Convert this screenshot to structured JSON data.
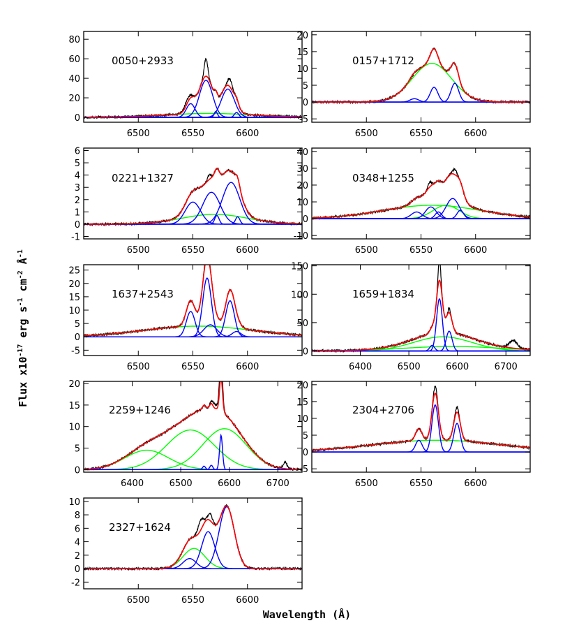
{
  "figure": {
    "xlabel": "Wavelength (Å)",
    "ylabel_parts": {
      "prefix": "Flux x10",
      "exp1": "-17",
      "mid1": " erg s",
      "exp2": "-1",
      "mid2": " cm",
      "exp3": "-2",
      "mid3": " Å",
      "exp4": "-1"
    },
    "colors": {
      "data": "#000000",
      "total_fit": "#ff0000",
      "narrow_components": "#0000ff",
      "broad_components": "#00ff00"
    }
  },
  "chart_data": [
    {
      "type": "line",
      "title": "0050+2933",
      "xlim": [
        6450,
        6650
      ],
      "ylim": [
        -5,
        88
      ],
      "xticks": [
        6500,
        6550,
        6600
      ],
      "yticks": [
        0,
        20,
        40,
        60,
        80
      ],
      "narrow": [
        [
          6548,
          14,
          4
        ],
        [
          6562,
          38,
          6
        ],
        [
          6571,
          6,
          1.5
        ],
        [
          6582,
          29,
          6
        ],
        [
          6590,
          5,
          2
        ]
      ],
      "broad": [
        [
          6565,
          4,
          40
        ]
      ],
      "extra_peaks": [
        [
          6562,
          18,
          1.6
        ],
        [
          6584,
          8,
          2
        ],
        [
          6545,
          4,
          3
        ]
      ]
    },
    {
      "type": "line",
      "title": "0157+1712",
      "xlim": [
        6450,
        6650
      ],
      "ylim": [
        -6,
        21
      ],
      "xticks": [
        6500,
        6550,
        6600
      ],
      "yticks": [
        -5,
        0,
        5,
        10,
        15,
        20
      ],
      "narrow": [
        [
          6544,
          1,
          4
        ],
        [
          6562,
          4.4,
          3.5
        ],
        [
          6581,
          5.6,
          3.5
        ]
      ],
      "broad": [
        [
          6560,
          11.5,
          18
        ]
      ],
      "extra_peaks": []
    },
    {
      "type": "line",
      "title": "0221+1327",
      "xlim": [
        6450,
        6650
      ],
      "ylim": [
        -1.2,
        6.2
      ],
      "xticks": [
        6500,
        6550,
        6600
      ],
      "yticks": [
        -1,
        0,
        1,
        2,
        3,
        4,
        5,
        6
      ],
      "narrow": [
        [
          6550,
          1.8,
          7
        ],
        [
          6567,
          2.6,
          8
        ],
        [
          6572,
          0.7,
          2
        ],
        [
          6585,
          3.4,
          8
        ],
        [
          6591,
          0.6,
          2
        ]
      ],
      "broad": [
        [
          6570,
          0.8,
          30
        ]
      ],
      "extra_peaks": [
        [
          6565,
          0.4,
          1.5
        ]
      ]
    },
    {
      "type": "line",
      "title": "0348+1255",
      "xlim": [
        6450,
        6650
      ],
      "ylim": [
        -12,
        42
      ],
      "xticks": [
        6500,
        6550,
        6600
      ],
      "yticks": [
        -10,
        0,
        10,
        20,
        30,
        40
      ],
      "narrow": [
        [
          6546,
          4,
          5
        ],
        [
          6559,
          7,
          5
        ],
        [
          6566,
          4,
          3
        ],
        [
          6579,
          12,
          6
        ],
        [
          6586,
          5,
          3
        ]
      ],
      "broad": [
        [
          6560,
          8,
          45
        ],
        [
          6573,
          8,
          12
        ]
      ],
      "extra_peaks": [
        [
          6558,
          3,
          1.5
        ],
        [
          6581,
          3,
          2
        ]
      ]
    },
    {
      "type": "line",
      "title": "1637+2543",
      "xlim": [
        6450,
        6650
      ],
      "ylim": [
        -7,
        27
      ],
      "xticks": [
        6500,
        6550,
        6600
      ],
      "yticks": [
        -5,
        0,
        5,
        10,
        15,
        20,
        25
      ],
      "narrow": [
        [
          6548,
          9.5,
          4
        ],
        [
          6563,
          22,
          4
        ],
        [
          6566,
          4.5,
          6
        ],
        [
          6584,
          13.5,
          4
        ],
        [
          6590,
          2,
          4
        ]
      ],
      "broad": [
        [
          6555,
          4,
          50
        ]
      ],
      "extra_peaks": [
        [
          6563,
          4,
          1.5
        ]
      ]
    },
    {
      "type": "line",
      "title": "1659+1834",
      "xlim": [
        6300,
        6750
      ],
      "ylim": [
        -8,
        152
      ],
      "xticks": [
        6400,
        6500,
        6600,
        6700
      ],
      "yticks": [
        0,
        50,
        100,
        150
      ],
      "narrow": [
        [
          6563,
          92,
          6
        ],
        [
          6583,
          35,
          6
        ],
        [
          6548,
          10,
          5
        ]
      ],
      "broad": [
        [
          6570,
          25,
          60
        ],
        [
          6590,
          8,
          100
        ]
      ],
      "extra_peaks": [
        [
          6563,
          38,
          2.5
        ],
        [
          6583,
          8,
          2
        ],
        [
          6715,
          14,
          8
        ]
      ]
    },
    {
      "type": "line",
      "title": "2259+1246",
      "xlim": [
        6300,
        6750
      ],
      "ylim": [
        -0.6,
        20.5
      ],
      "xticks": [
        6400,
        6500,
        6600,
        6700
      ],
      "yticks": [
        0,
        5,
        10,
        15,
        20
      ],
      "narrow": [
        [
          6548,
          0.8,
          3
        ],
        [
          6563,
          1,
          3
        ],
        [
          6583,
          8,
          3
        ]
      ],
      "broad": [
        [
          6430,
          4.5,
          45
        ],
        [
          6520,
          9.2,
          50
        ],
        [
          6590,
          9.5,
          45
        ]
      ],
      "extra_peaks": [
        [
          6583,
          5,
          3
        ],
        [
          6570,
          1,
          6
        ],
        [
          6715,
          1.5,
          4
        ]
      ]
    },
    {
      "type": "line",
      "title": "2304+2706",
      "xlim": [
        6450,
        6650
      ],
      "ylim": [
        -6,
        21
      ],
      "xticks": [
        6500,
        6550,
        6600
      ],
      "yticks": [
        -5,
        0,
        5,
        10,
        15,
        20
      ],
      "narrow": [
        [
          6548,
          3.5,
          3
        ],
        [
          6563,
          14,
          3
        ],
        [
          6583,
          8.5,
          3
        ]
      ],
      "broad": [
        [
          6565,
          3.5,
          60
        ]
      ],
      "extra_peaks": [
        [
          6563,
          2,
          1.5
        ],
        [
          6583,
          1.5,
          1.5
        ]
      ]
    },
    {
      "type": "line",
      "title": "2327+1624",
      "xlim": [
        6450,
        6650
      ],
      "ylim": [
        -3,
        10.5
      ],
      "xticks": [
        6500,
        6550,
        6600
      ],
      "yticks": [
        -2,
        0,
        2,
        4,
        6,
        8,
        10
      ],
      "narrow": [
        [
          6547,
          1.5,
          6
        ],
        [
          6564,
          5.5,
          6
        ],
        [
          6581,
          9.2,
          7
        ]
      ],
      "broad": [
        [
          6551,
          3,
          10
        ]
      ],
      "extra_peaks": [
        [
          6557,
          1.5,
          2.5
        ],
        [
          6566,
          1,
          2
        ]
      ]
    }
  ]
}
